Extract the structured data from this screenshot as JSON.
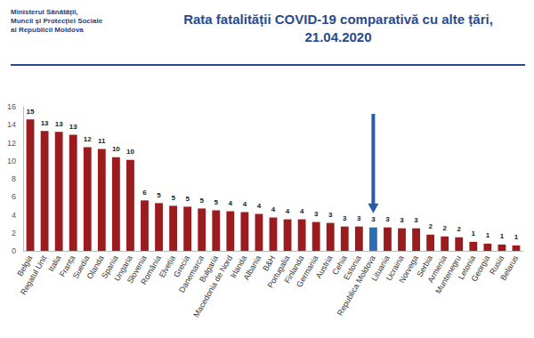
{
  "chart_data": {
    "type": "bar",
    "title": "Rata fatalității COVID-19 comparativă cu alte țări,\n21.04.2020",
    "annotations": [
      "Ministerul Sănătății,",
      "Muncii și Protecției Sociale",
      "al Republicii Moldova"
    ],
    "categories": [
      "Belgia",
      "Regatul Unit",
      "Italia",
      "Franța",
      "Suedia",
      "Olanda",
      "Spania",
      "Ungaria",
      "Slovenia",
      "România",
      "Elveția",
      "Grecia",
      "Danemarca",
      "Bulgaria",
      "Macedonia de Nord",
      "Irlanda",
      "Albania",
      "B&H",
      "Portugalia",
      "Finlanda",
      "Germania",
      "Austria",
      "Cehia",
      "Estonia",
      "Republica Moldova",
      "Lituania",
      "Ucraina",
      "Norvega",
      "Serbia",
      "Armenia",
      "Muntenegru",
      "Letonia",
      "Georgia",
      "Rusia",
      "Belarus"
    ],
    "values": [
      14.6,
      13.3,
      13.2,
      12.9,
      11.5,
      11.3,
      10.4,
      10.1,
      5.6,
      5.3,
      5.0,
      4.9,
      4.7,
      4.5,
      4.4,
      4.3,
      4.1,
      3.7,
      3.5,
      3.5,
      3.2,
      3.1,
      2.7,
      2.7,
      2.6,
      2.6,
      2.5,
      2.5,
      1.8,
      1.6,
      1.5,
      1.0,
      0.8,
      0.7,
      0.6
    ],
    "value_labels": [
      "15",
      "13",
      "13",
      "13",
      "12",
      "11",
      "10",
      "10",
      "6",
      "5",
      "5",
      "5",
      "5",
      "5",
      "4",
      "4",
      "4",
      "4",
      "4",
      "4",
      "3",
      "3",
      "3",
      "3",
      "3",
      "3",
      "3",
      "3",
      "2",
      "2",
      "2",
      "1",
      "1",
      "1",
      "1"
    ],
    "colors": [
      "#9b1c1f",
      "#9b1c1f",
      "#9b1c1f",
      "#9b1c1f",
      "#9b1c1f",
      "#9b1c1f",
      "#9b1c1f",
      "#9b1c1f",
      "#9b1c1f",
      "#9b1c1f",
      "#9b1c1f",
      "#9b1c1f",
      "#9b1c1f",
      "#9b1c1f",
      "#9b1c1f",
      "#9b1c1f",
      "#9b1c1f",
      "#9b1c1f",
      "#9b1c1f",
      "#9b1c1f",
      "#9b1c1f",
      "#9b1c1f",
      "#9b1c1f",
      "#9b1c1f",
      "#2f6db3",
      "#9b1c1f",
      "#9b1c1f",
      "#9b1c1f",
      "#9b1c1f",
      "#9b1c1f",
      "#9b1c1f",
      "#9b1c1f",
      "#9b1c1f",
      "#9b1c1f",
      "#9b1c1f"
    ],
    "ylim": [
      0,
      16
    ],
    "yticks": [
      0,
      2,
      4,
      6,
      8,
      10,
      12,
      14,
      16
    ],
    "grid": false,
    "data_labels": true
  }
}
